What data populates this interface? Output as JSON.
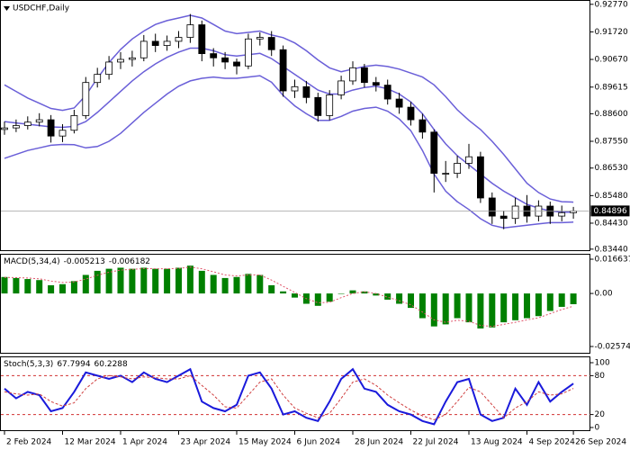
{
  "chart_data": [
    {
      "type": "candlestick",
      "title": "USDCHF,Daily",
      "categories": [
        "2 Feb 2024",
        null,
        null,
        null,
        null,
        "12 Mar 2024",
        null,
        null,
        null,
        null,
        "1 Apr 2024",
        null,
        null,
        null,
        null,
        "23 Apr 2024",
        null,
        null,
        null,
        null,
        "15 May 2024",
        null,
        null,
        null,
        null,
        "6 Jun 2024",
        null,
        null,
        null,
        null,
        "28 Jun 2024",
        null,
        null,
        null,
        null,
        "22 Jul 2024",
        null,
        null,
        null,
        null,
        "13 Aug 2024",
        null,
        null,
        null,
        null,
        "4 Sep 2024",
        null,
        null,
        null,
        "26 Sep 2024"
      ],
      "open": [
        0.88,
        0.8806,
        0.8815,
        0.8828,
        0.8837,
        0.8775,
        0.8797,
        0.8853,
        0.8979,
        0.901,
        0.9057,
        0.9067,
        0.9073,
        0.9136,
        0.912,
        0.9136,
        0.9151,
        0.9199,
        0.9089,
        0.9073,
        0.9057,
        0.9042,
        0.9145,
        0.9151,
        0.9104,
        0.8947,
        0.8963,
        0.8922,
        0.8853,
        0.8932,
        0.8985,
        0.9035,
        0.8979,
        0.8969,
        0.8916,
        0.8885,
        0.8837,
        0.879,
        0.8633,
        0.8633,
        0.8671,
        0.8696,
        0.8539,
        0.847,
        0.8461,
        0.8508,
        0.847,
        0.8508,
        0.847,
        0.8483
      ],
      "high": [
        0.883,
        0.8838,
        0.885,
        0.8862,
        0.8855,
        0.882,
        0.8875,
        0.9,
        0.9035,
        0.908,
        0.9095,
        0.91,
        0.916,
        0.9165,
        0.9158,
        0.9175,
        0.924,
        0.9215,
        0.911,
        0.9095,
        0.907,
        0.9165,
        0.917,
        0.9175,
        0.912,
        0.899,
        0.8985,
        0.894,
        0.895,
        0.9005,
        0.906,
        0.905,
        0.9,
        0.899,
        0.894,
        0.8905,
        0.886,
        0.88,
        0.868,
        0.87,
        0.8745,
        0.8715,
        0.856,
        0.849,
        0.854,
        0.855,
        0.853,
        0.8525,
        0.851,
        0.8505
      ],
      "low": [
        0.878,
        0.879,
        0.88,
        0.8812,
        0.875,
        0.8752,
        0.8785,
        0.884,
        0.896,
        0.899,
        0.903,
        0.904,
        0.906,
        0.9095,
        0.91,
        0.911,
        0.913,
        0.906,
        0.904,
        0.903,
        0.901,
        0.903,
        0.912,
        0.908,
        0.8925,
        0.892,
        0.89,
        0.883,
        0.8835,
        0.8915,
        0.897,
        0.896,
        0.8945,
        0.8895,
        0.886,
        0.8815,
        0.8765,
        0.856,
        0.86,
        0.8615,
        0.865,
        0.852,
        0.844,
        0.842,
        0.844,
        0.8445,
        0.845,
        0.844,
        0.845,
        0.846
      ],
      "close": [
        0.8806,
        0.8815,
        0.8828,
        0.8837,
        0.8775,
        0.8797,
        0.8853,
        0.8979,
        0.901,
        0.9057,
        0.9067,
        0.9073,
        0.9136,
        0.912,
        0.9136,
        0.9151,
        0.9199,
        0.9089,
        0.9073,
        0.9057,
        0.9042,
        0.9145,
        0.9151,
        0.9104,
        0.8947,
        0.8963,
        0.8922,
        0.8853,
        0.8932,
        0.8985,
        0.9035,
        0.8979,
        0.8969,
        0.8916,
        0.8885,
        0.8837,
        0.879,
        0.8633,
        0.8633,
        0.8671,
        0.8696,
        0.8539,
        0.847,
        0.8461,
        0.8508,
        0.847,
        0.8508,
        0.847,
        0.8483,
        0.84896
      ],
      "series": [
        {
          "color": "#6a5fd8",
          "values": [
            0.897,
            0.8945,
            0.892,
            0.89,
            0.888,
            0.8873,
            0.8882,
            0.893,
            0.8995,
            0.9055,
            0.9105,
            0.9145,
            0.9175,
            0.92,
            0.9215,
            0.9225,
            0.9235,
            0.9225,
            0.92,
            0.9175,
            0.9165,
            0.917,
            0.9175,
            0.916,
            0.915,
            0.913,
            0.91,
            0.9065,
            0.9035,
            0.902,
            0.903,
            0.904,
            0.9045,
            0.904,
            0.903,
            0.9015,
            0.9,
            0.897,
            0.8925,
            0.8875,
            0.8835,
            0.88,
            0.8755,
            0.8705,
            0.865,
            0.8595,
            0.856,
            0.8535,
            0.8525,
            0.8523
          ]
        },
        {
          "color": "#6a5fd8",
          "values": [
            0.883,
            0.8825,
            0.882,
            0.8815,
            0.881,
            0.8808,
            0.8812,
            0.883,
            0.8865,
            0.8905,
            0.8945,
            0.8985,
            0.902,
            0.905,
            0.9075,
            0.9095,
            0.911,
            0.911,
            0.91,
            0.9085,
            0.908,
            0.9085,
            0.909,
            0.907,
            0.904,
            0.901,
            0.898,
            0.895,
            0.8935,
            0.8935,
            0.895,
            0.896,
            0.8965,
            0.8955,
            0.8935,
            0.8905,
            0.886,
            0.88,
            0.8745,
            0.87,
            0.8665,
            0.863,
            0.8595,
            0.8565,
            0.854,
            0.8515,
            0.85,
            0.849,
            0.8485,
            0.8485
          ]
        },
        {
          "color": "#6a5fd8",
          "values": [
            0.869,
            0.8705,
            0.872,
            0.873,
            0.874,
            0.8743,
            0.8742,
            0.873,
            0.8735,
            0.8755,
            0.8785,
            0.8825,
            0.8865,
            0.89,
            0.8935,
            0.8965,
            0.8985,
            0.8995,
            0.9,
            0.8995,
            0.8995,
            0.9,
            0.9005,
            0.898,
            0.893,
            0.889,
            0.886,
            0.8835,
            0.8835,
            0.885,
            0.887,
            0.888,
            0.8885,
            0.887,
            0.884,
            0.8795,
            0.872,
            0.863,
            0.8565,
            0.8525,
            0.8495,
            0.846,
            0.8435,
            0.8425,
            0.843,
            0.8435,
            0.844,
            0.8445,
            0.8445,
            0.8447
          ]
        }
      ],
      "ylim": [
        0.834,
        0.929
      ],
      "yticks": [
        {
          "value": 0.9277,
          "label": "0.92770"
        },
        {
          "value": 0.9172,
          "label": "0.91720"
        },
        {
          "value": 0.9067,
          "label": "0.90670"
        },
        0.89615,
        {
          "value": 0.886,
          "label": "0.88600"
        },
        {
          "value": 0.8755,
          "label": "0.87550"
        },
        {
          "value": 0.8653,
          "label": "0.86530"
        },
        {
          "value": 0.8548,
          "label": "0.85480"
        },
        {
          "value": 0.8443,
          "label": "0.84430"
        },
        {
          "value": 0.8344,
          "label": "0.83440"
        }
      ]
    },
    {
      "type": "macd",
      "name": "MACD(5,34,4)",
      "series": [
        {
          "color": "#008000",
          "style": "bar",
          "values": [
            0.008,
            0.0075,
            0.007,
            0.0065,
            0.004,
            0.0045,
            0.006,
            0.009,
            0.011,
            0.012,
            0.0125,
            0.012,
            0.0125,
            0.012,
            0.012,
            0.0125,
            0.0135,
            0.011,
            0.009,
            0.0075,
            0.008,
            0.0095,
            0.009,
            0.004,
            0.001,
            -0.002,
            -0.005,
            -0.006,
            -0.004,
            0.0,
            0.0015,
            0.001,
            -0.001,
            -0.003,
            -0.005,
            -0.007,
            -0.012,
            -0.016,
            -0.015,
            -0.012,
            -0.014,
            -0.017,
            -0.0165,
            -0.014,
            -0.013,
            -0.012,
            -0.011,
            -0.0085,
            -0.0065,
            -0.005213
          ]
        },
        {
          "color": "#e0556a",
          "style": "dotted",
          "values": [
            0.0078,
            0.0077,
            0.0075,
            0.0071,
            0.006,
            0.0053,
            0.0056,
            0.007,
            0.0088,
            0.0103,
            0.0114,
            0.0117,
            0.0121,
            0.012,
            0.012,
            0.0122,
            0.0128,
            0.012,
            0.0105,
            0.009,
            0.0085,
            0.009,
            0.009,
            0.0065,
            0.0035,
            0.0005,
            -0.0025,
            -0.0045,
            -0.0043,
            -0.002,
            0.0,
            0.0008,
            0.0,
            -0.0018,
            -0.0035,
            -0.0055,
            -0.009,
            -0.0128,
            -0.014,
            -0.013,
            -0.0135,
            -0.0155,
            -0.016,
            -0.015,
            -0.014,
            -0.0128,
            -0.0118,
            -0.0098,
            -0.0078,
            -0.006182
          ]
        }
      ],
      "ylim": [
        -0.025749,
        0.016637
      ],
      "yticks": [
        0.016637,
        {
          "value": 0,
          "label": "0.00"
        },
        -0.025749
      ]
    },
    {
      "type": "stochastic",
      "name": "Stoch(5,3,3)",
      "series": [
        {
          "color": "#1a1adb",
          "style": "solid",
          "values": [
            60,
            45,
            55,
            50,
            25,
            30,
            55,
            85,
            80,
            75,
            80,
            70,
            85,
            75,
            70,
            80,
            90,
            40,
            30,
            25,
            35,
            80,
            85,
            60,
            20,
            25,
            15,
            10,
            40,
            75,
            90,
            60,
            55,
            35,
            25,
            20,
            10,
            5,
            40,
            70,
            75,
            20,
            10,
            15,
            60,
            35,
            70,
            40,
            55,
            67.7994
          ]
        },
        {
          "color": "#d04040",
          "style": "dashed",
          "values": [
            55,
            52,
            50,
            52,
            40,
            33,
            38,
            60,
            75,
            80,
            78,
            75,
            78,
            77,
            75,
            75,
            80,
            65,
            50,
            32,
            30,
            50,
            70,
            75,
            50,
            30,
            22,
            15,
            22,
            45,
            70,
            75,
            65,
            50,
            38,
            27,
            18,
            12,
            20,
            40,
            62,
            55,
            35,
            15,
            30,
            40,
            55,
            50,
            52,
            60.2288
          ]
        }
      ],
      "levels": [
        80,
        20
      ],
      "level_color": "#d03030",
      "ylim": [
        0,
        100
      ],
      "yticks": [
        100,
        80,
        20,
        0
      ]
    }
  ]
}
